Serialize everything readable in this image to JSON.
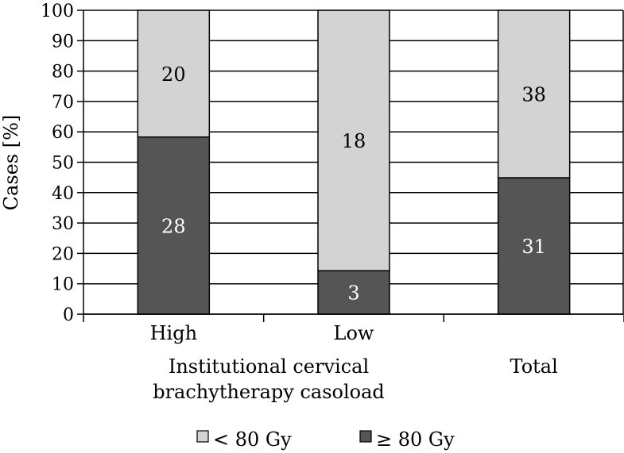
{
  "chart_data": {
    "type": "bar",
    "stacked": true,
    "percent": true,
    "categories": [
      "High",
      "Low",
      "Total"
    ],
    "group_label": "Institutional cervical brachytherapy casoload",
    "xlabel": "",
    "ylabel": "Cases [%]",
    "ylim": [
      0,
      100
    ],
    "yticks": [
      0,
      10,
      20,
      30,
      40,
      50,
      60,
      70,
      80,
      90,
      100
    ],
    "grid": true,
    "legend_position": "bottom",
    "series": [
      {
        "name": "≥ 80 Gy",
        "values": [
          58.3,
          14.3,
          44.9
        ],
        "counts": [
          28,
          3,
          31
        ],
        "count_labels": [
          "28",
          "3",
          "31"
        ],
        "color": "#555555",
        "label_color": "#ffffff"
      },
      {
        "name": "< 80 Gy",
        "values": [
          41.7,
          85.7,
          55.1
        ],
        "counts": [
          20,
          18,
          38
        ],
        "count_labels": [
          "20",
          "18",
          "38"
        ],
        "color": "#d3d3d3",
        "label_color": "#000000"
      }
    ],
    "legend_order": [
      1,
      0
    ]
  }
}
